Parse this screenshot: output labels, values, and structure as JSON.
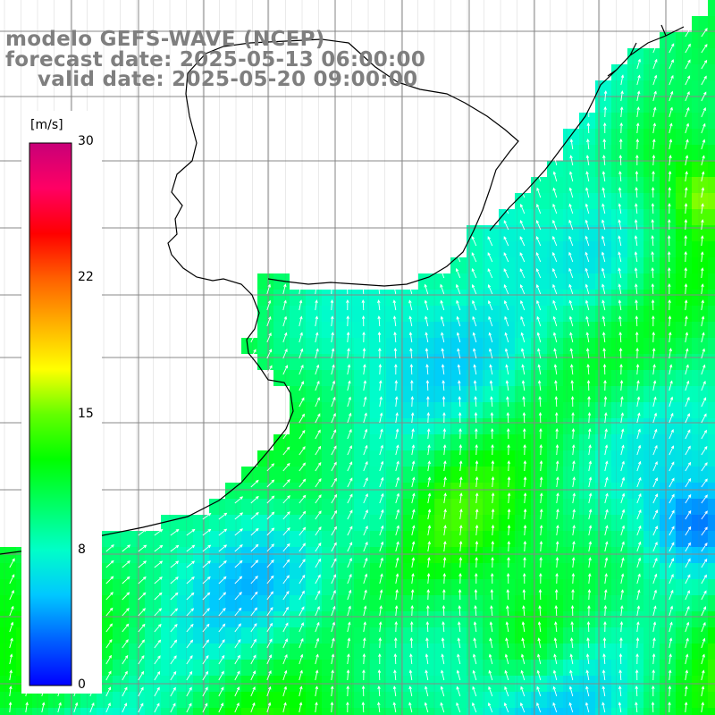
{
  "titles": {
    "model": "modelo GEFS-WAVE (NCEP)",
    "forecast": "forecast date: 2025-05-13 06:00:00",
    "valid": "valid date: 2025-05-20 09:00:00"
  },
  "colorbar": {
    "units": "[m/s]",
    "ticks": [
      "30",
      "22",
      "15",
      "8",
      "0"
    ],
    "colors": [
      "#0000ff",
      "#0060ff",
      "#00c8ff",
      "#00ffc8",
      "#00ff64",
      "#00ff00",
      "#64ff00",
      "#ffff00",
      "#ffb000",
      "#ff6000",
      "#ff0000",
      "#ff0064",
      "#c80078"
    ]
  },
  "map": {
    "colors": {
      "land": "#ffffff",
      "coast": "#000000",
      "grid": "#888888",
      "arrow": "#ffffff",
      "label": "#808080"
    }
  }
}
